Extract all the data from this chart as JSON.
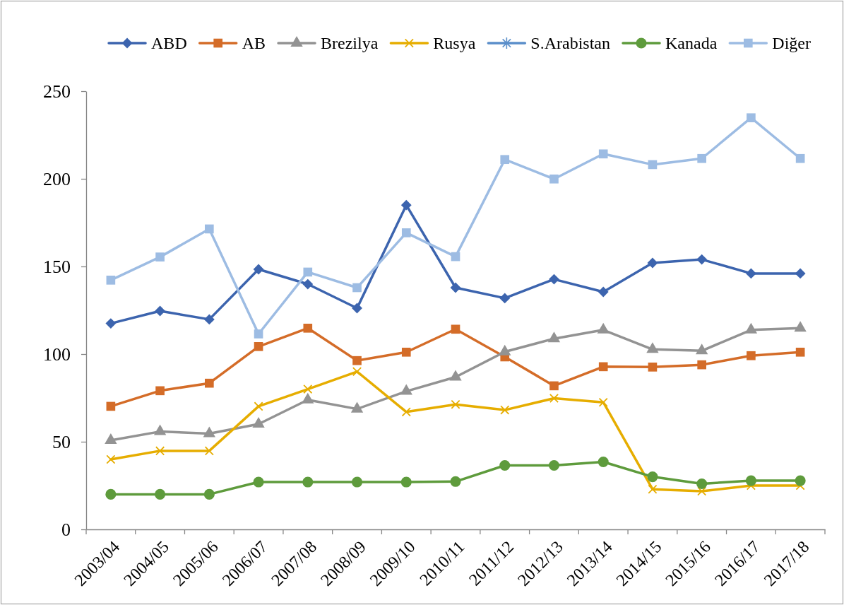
{
  "chart_data": {
    "type": "line",
    "categories": [
      "2003/04",
      "2004/05",
      "2005/06",
      "2006/07",
      "2007/08",
      "2008/09",
      "2009/10",
      "2010/11",
      "2011/12",
      "2012/13",
      "2013/14",
      "2014/15",
      "2015/16",
      "2016/17",
      "2017/18"
    ],
    "series": [
      {
        "name": "ABD",
        "color": "#3c64ae",
        "marker": "diamond",
        "values": [
          117.5,
          124.6,
          119.8,
          148.4,
          139.9,
          126.2,
          185,
          137.9,
          131.9,
          142.7,
          135.5,
          152,
          154,
          146,
          146
        ]
      },
      {
        "name": "AB",
        "color": "#d46c28",
        "marker": "square",
        "values": [
          70.2,
          79.1,
          83.4,
          104.3,
          114.8,
          96.3,
          101.1,
          114.2,
          98.4,
          81.9,
          92.8,
          92.6,
          93.9,
          99.1,
          101.1
        ]
      },
      {
        "name": "Brezilya",
        "color": "#939393",
        "marker": "triangle",
        "values": [
          50.8,
          55.8,
          54.6,
          60.1,
          73.9,
          68.7,
          78.8,
          86.9,
          101.3,
          108.8,
          113.8,
          102.7,
          101.9,
          113.8,
          114.8
        ]
      },
      {
        "name": "Rusya",
        "color": "#e6ad00",
        "marker": "cross",
        "values": [
          39.9,
          44.8,
          44.8,
          70.2,
          80,
          90,
          67,
          71.3,
          68.1,
          74.8,
          72.5,
          22.9,
          21.8,
          25,
          25
        ]
      },
      {
        "name": "S.Arabistan",
        "color": "#5b8fca",
        "marker": "star",
        "values": [
          null,
          null,
          null,
          null,
          null,
          null,
          null,
          null,
          null,
          null,
          null,
          null,
          null,
          null,
          null
        ]
      },
      {
        "name": "Kanada",
        "color": "#5e9b3c",
        "marker": "circle",
        "values": [
          20,
          20,
          20,
          27,
          27,
          27,
          27,
          27.3,
          36.5,
          36.5,
          38.5,
          30,
          26,
          27.8,
          27.8
        ]
      },
      {
        "name": "Diğer",
        "color": "#9dbce3",
        "marker": "square",
        "values": [
          142.2,
          155.4,
          171.4,
          111.5,
          146.8,
          137.9,
          169.2,
          155.6,
          211,
          199.9,
          214.2,
          208.1,
          211.6,
          234.8,
          211.6
        ]
      }
    ],
    "ylim": [
      0,
      250
    ],
    "yticks": [
      0,
      50,
      100,
      150,
      200,
      250
    ],
    "legend": "top"
  }
}
